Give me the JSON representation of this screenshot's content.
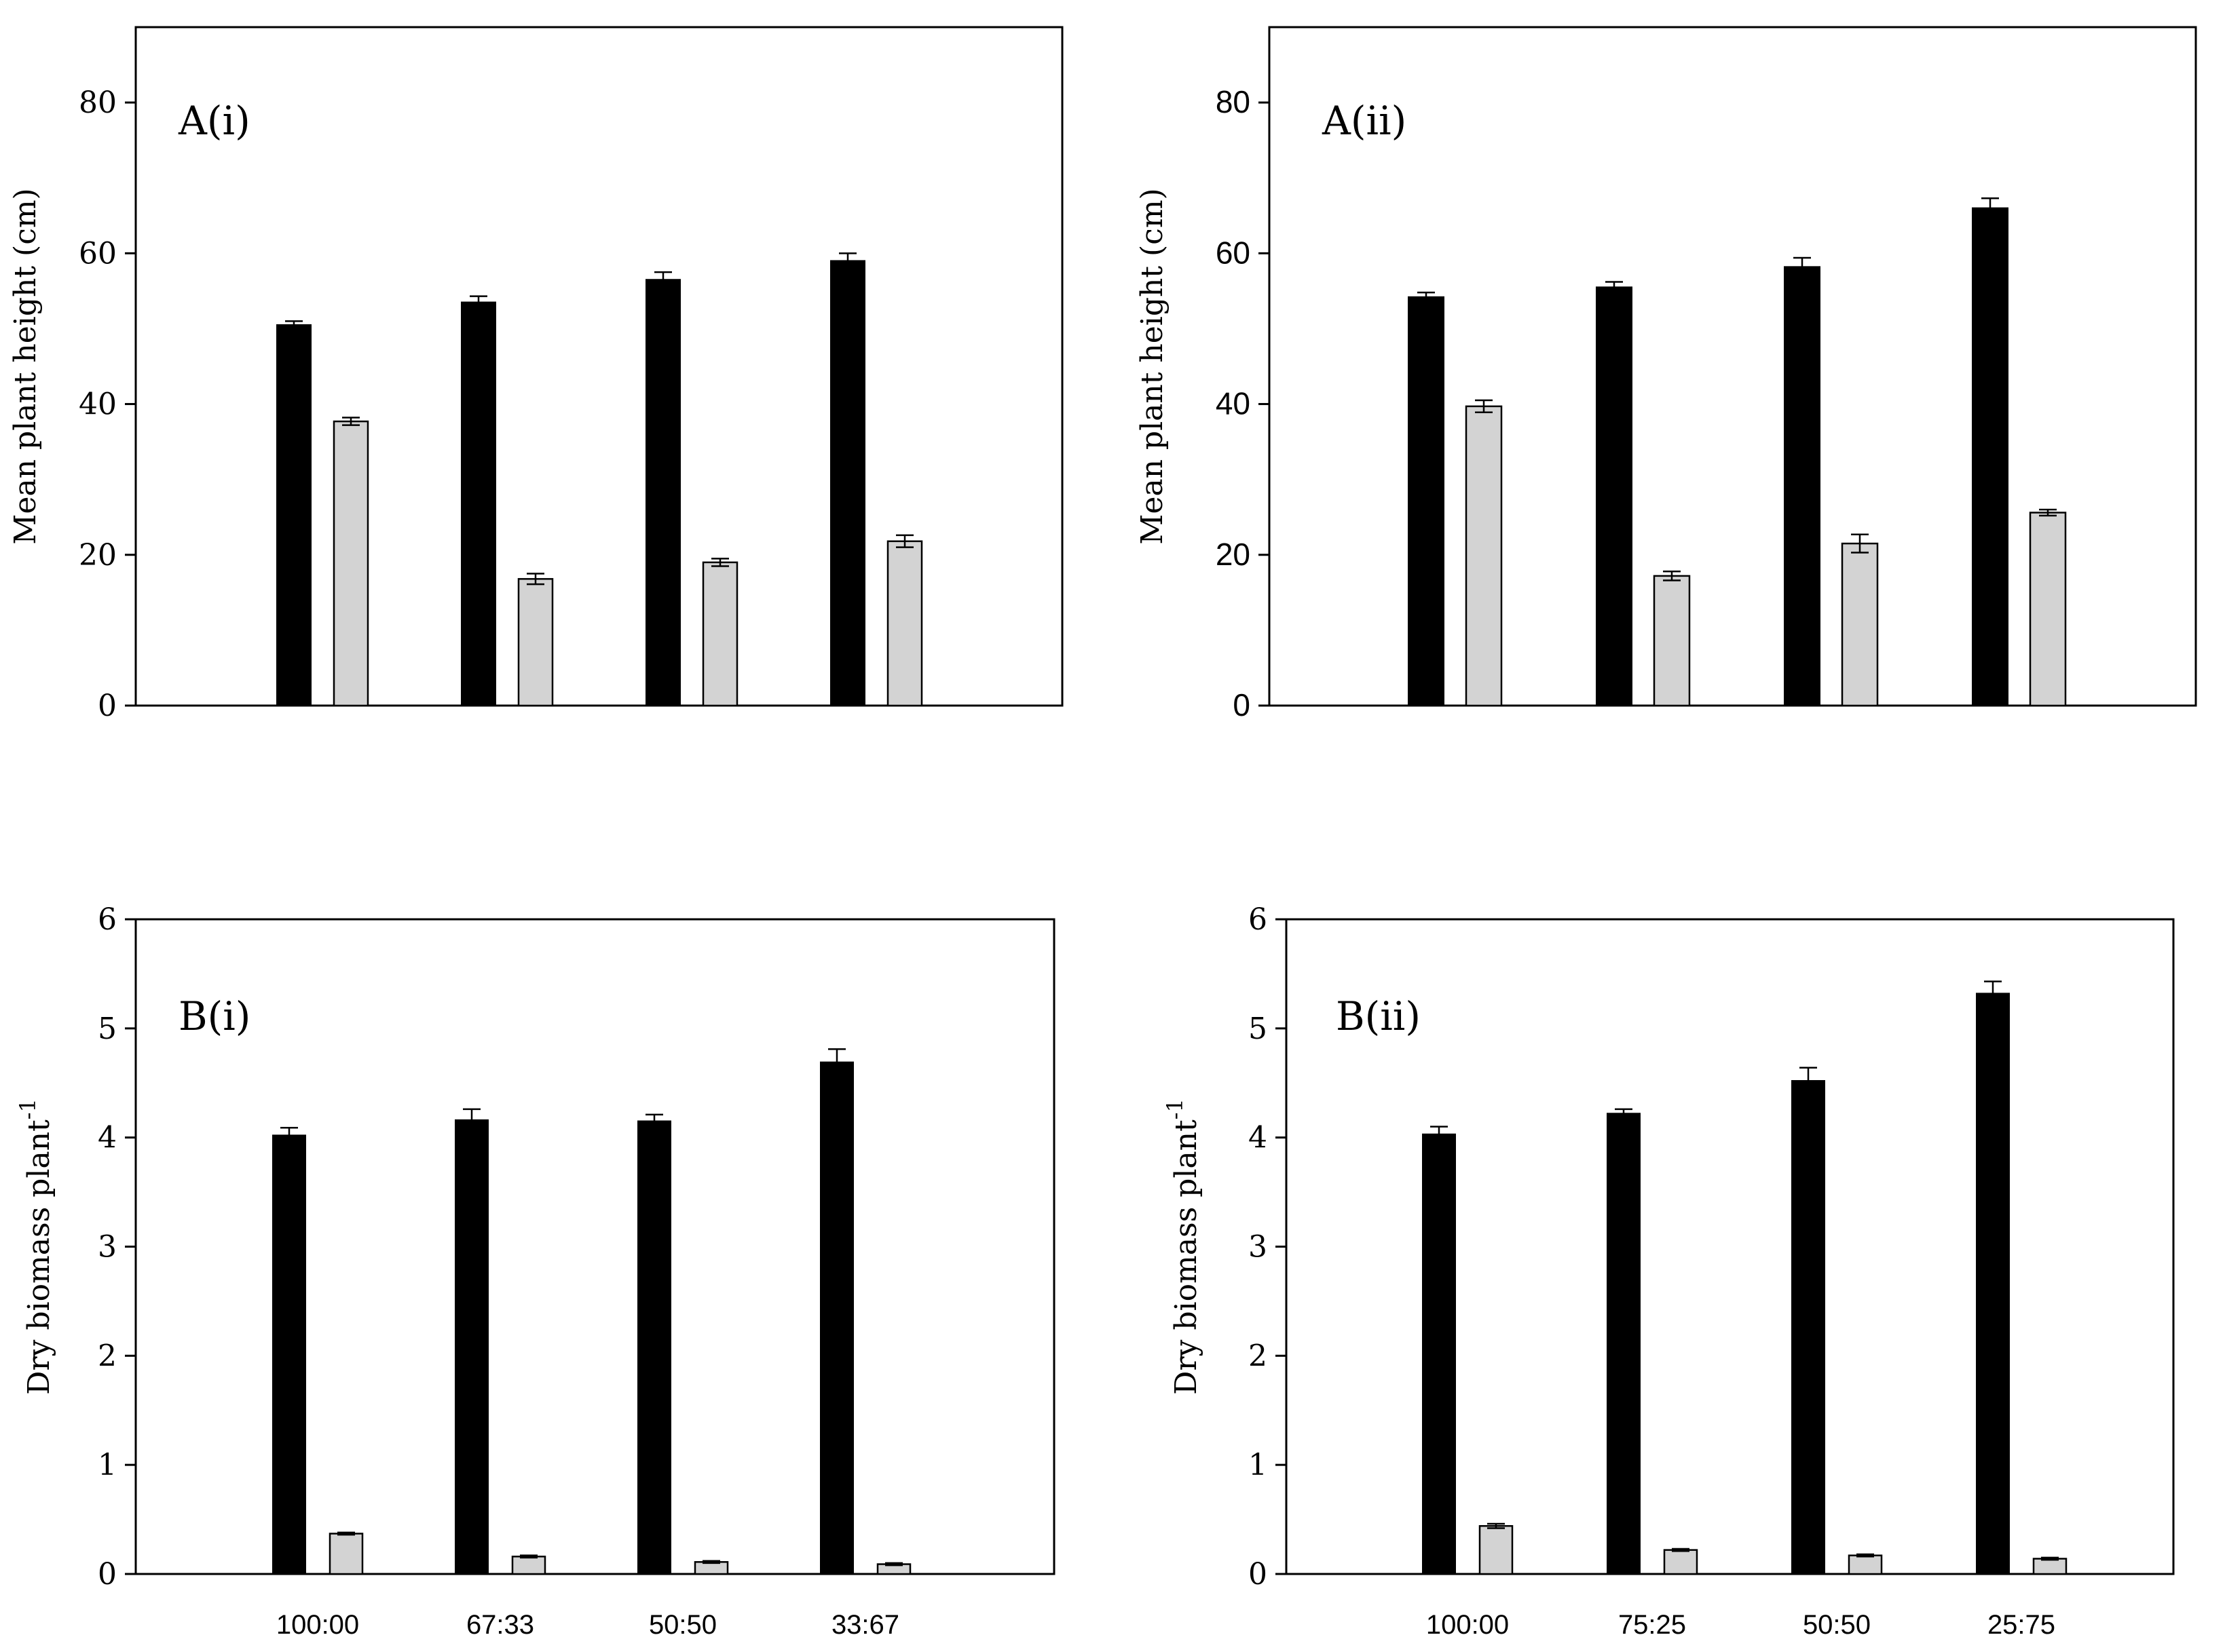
{
  "chart_data": [
    {
      "id": "Ai",
      "type": "bar",
      "panel_label": "A(i)",
      "ylabel": "Mean plant height (cm)",
      "ylim": [
        0,
        90
      ],
      "yticks": [
        0,
        20,
        40,
        60,
        80
      ],
      "categories": [
        "100:00",
        "67:33",
        "50:50",
        "33:67"
      ],
      "show_category_labels": false,
      "series": [
        {
          "name": "black bars",
          "color": "#000000",
          "values": [
            50.5,
            53.5,
            56.5,
            59.0
          ],
          "errors": [
            0.5,
            0.8,
            1.0,
            1.0
          ]
        },
        {
          "name": "grey bars",
          "color": "#d3d3d3",
          "values": [
            37.7,
            16.8,
            19.0,
            21.8
          ],
          "errors": [
            0.5,
            0.7,
            0.5,
            0.8
          ]
        }
      ]
    },
    {
      "id": "Aii",
      "type": "bar",
      "panel_label": "A(ii)",
      "ylabel": "Mean plant height (cm)",
      "ylim": [
        0,
        90
      ],
      "yticks": [
        0,
        20,
        40,
        60,
        80
      ],
      "categories": [
        "100:00",
        "75:25",
        "50:50",
        "25:75"
      ],
      "show_category_labels": false,
      "series": [
        {
          "name": "black bars",
          "color": "#000000",
          "values": [
            54.2,
            55.5,
            58.2,
            66.0
          ],
          "errors": [
            0.6,
            0.7,
            1.2,
            1.3
          ]
        },
        {
          "name": "grey bars",
          "color": "#d3d3d3",
          "values": [
            39.7,
            17.2,
            21.5,
            25.6
          ],
          "errors": [
            0.8,
            0.6,
            1.2,
            0.4
          ]
        }
      ]
    },
    {
      "id": "Bi",
      "type": "bar",
      "panel_label": "B(i)",
      "ylabel": "Dry biomass plant",
      "ylabel_superscript": "-1",
      "ylim": [
        0,
        6
      ],
      "yticks": [
        0,
        1,
        2,
        3,
        4,
        5,
        6
      ],
      "categories": [
        "100:00",
        "67:33",
        "50:50",
        "33:67"
      ],
      "show_category_labels": true,
      "series": [
        {
          "name": "black bars",
          "color": "#000000",
          "values": [
            4.02,
            4.16,
            4.15,
            4.69
          ],
          "errors": [
            0.07,
            0.1,
            0.06,
            0.12
          ]
        },
        {
          "name": "grey bars",
          "color": "#d3d3d3",
          "values": [
            0.37,
            0.16,
            0.11,
            0.09
          ],
          "errors": [
            0.01,
            0.01,
            0.01,
            0.01
          ]
        }
      ]
    },
    {
      "id": "Bii",
      "type": "bar",
      "panel_label": "B(ii)",
      "ylabel": "Dry biomass plant",
      "ylabel_superscript": "-1",
      "ylim": [
        0,
        6
      ],
      "yticks": [
        0,
        1,
        2,
        3,
        4,
        5,
        6
      ],
      "categories": [
        "100:00",
        "75:25",
        "50:50",
        "25:75"
      ],
      "show_category_labels": true,
      "series": [
        {
          "name": "black bars",
          "color": "#000000",
          "values": [
            4.03,
            4.22,
            4.52,
            5.32
          ],
          "errors": [
            0.07,
            0.04,
            0.12,
            0.11
          ]
        },
        {
          "name": "grey bars",
          "color": "#d3d3d3",
          "values": [
            0.44,
            0.22,
            0.17,
            0.14
          ],
          "errors": [
            0.02,
            0.01,
            0.01,
            0.01
          ]
        }
      ]
    }
  ]
}
